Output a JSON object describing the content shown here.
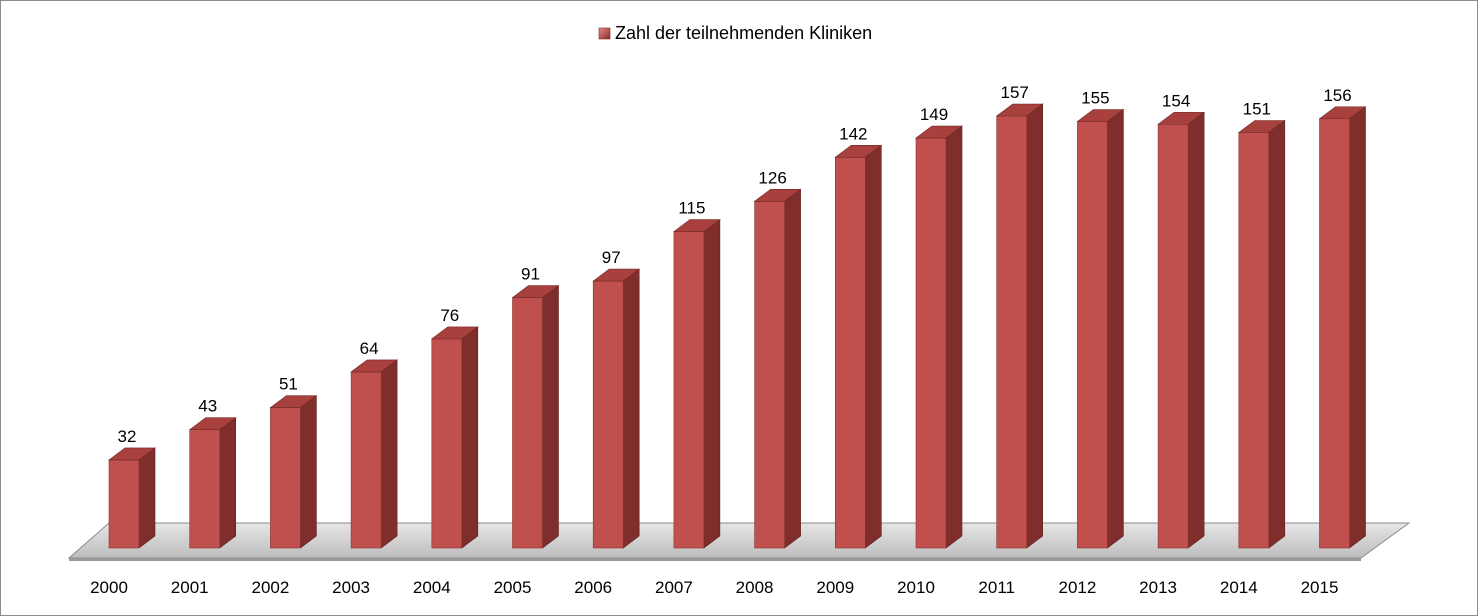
{
  "chart_data": {
    "type": "bar",
    "style": "3d-column",
    "categories": [
      "2000",
      "2001",
      "2002",
      "2003",
      "2004",
      "2005",
      "2006",
      "2007",
      "2008",
      "2009",
      "2010",
      "2011",
      "2012",
      "2013",
      "2014",
      "2015"
    ],
    "series": [
      {
        "name": "Zahl der teilnehmenden Kliniken",
        "values": [
          32,
          43,
          51,
          64,
          76,
          91,
          97,
          115,
          126,
          142,
          149,
          157,
          155,
          154,
          151,
          156
        ],
        "color": "#c0504d"
      }
    ],
    "data_labels": true,
    "legend_position": "top",
    "grid": false,
    "y_axis_visible": false,
    "ylim": [
      0,
      157
    ]
  }
}
